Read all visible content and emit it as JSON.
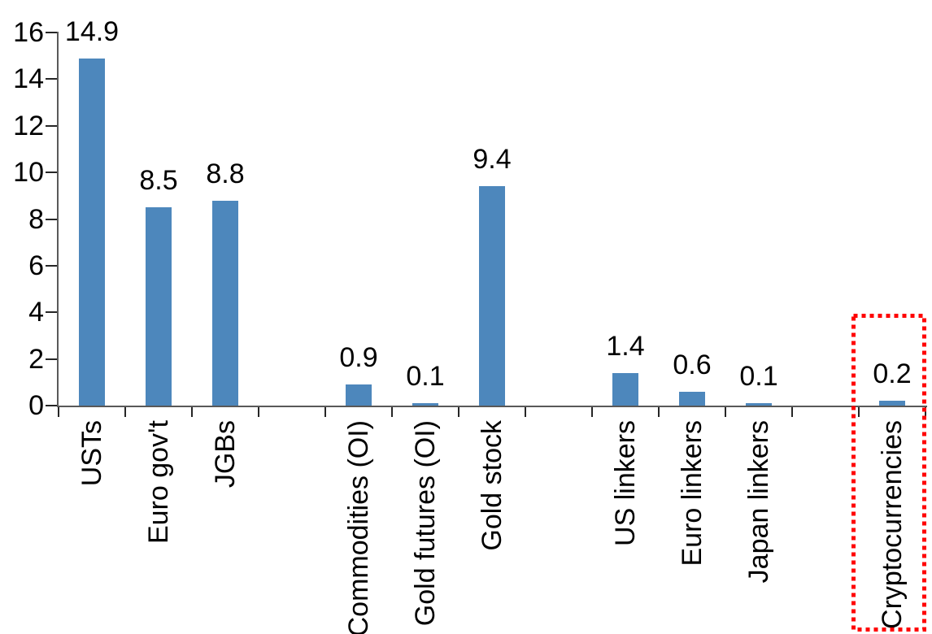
{
  "chart_data": {
    "type": "bar",
    "title": "",
    "categories": [
      "USTs",
      "Euro gov't",
      "JGBs",
      "Commodities (OI)",
      "Gold futures (OI)",
      "Gold stock",
      "US linkers",
      "Euro linkers",
      "Japan linkers",
      "Cryptocurrencies"
    ],
    "values": [
      14.9,
      8.5,
      8.8,
      0.9,
      0.1,
      9.4,
      1.4,
      0.6,
      0.1,
      0.2
    ],
    "value_labels": [
      "14.9",
      "8.5",
      "8.8",
      "0.9",
      "0.1",
      "9.4",
      "1.4",
      "0.6",
      "0.1",
      "0.2"
    ],
    "group_sizes": [
      3,
      3,
      3,
      1
    ],
    "groups": [
      {
        "categories": [
          "USTs",
          "Euro gov't",
          "JGBs"
        ],
        "values": [
          14.9,
          8.5,
          8.8
        ]
      },
      {
        "categories": [
          "Commodities (OI)",
          "Gold futures (OI)",
          "Gold stock"
        ],
        "values": [
          0.9,
          0.1,
          9.4
        ]
      },
      {
        "categories": [
          "US linkers",
          "Euro linkers",
          "Japan linkers"
        ],
        "values": [
          1.4,
          0.6,
          0.1
        ]
      },
      {
        "categories": [
          "Cryptocurrencies"
        ],
        "values": [
          0.2
        ]
      }
    ],
    "xlabel": "",
    "ylabel": "",
    "ylim": [
      0,
      16
    ],
    "yticks": [
      0,
      2,
      4,
      6,
      8,
      10,
      12,
      14,
      16
    ],
    "grid": false,
    "legend": false,
    "bar_color": "#4D87BC",
    "axis_color": "#595959",
    "tick_color": "#262626",
    "text_color": "#000000",
    "category_labels_rotated_90": true,
    "highlight": {
      "category": "Cryptocurrencies",
      "shape": "dotted-rectangle",
      "color": "#FF0000"
    }
  }
}
